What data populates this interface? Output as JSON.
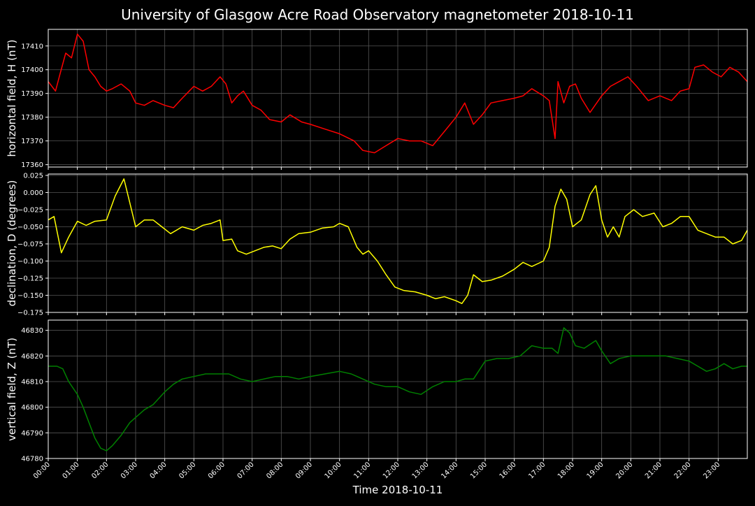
{
  "title": "University of Glasgow Acre Road Observatory magnetometer 2018-10-11",
  "xlabel": "Time 2018-10-11",
  "x_ticks": [
    "00:00",
    "01:00",
    "02:00",
    "03:00",
    "04:00",
    "05:00",
    "06:00",
    "07:00",
    "08:00",
    "09:00",
    "10:00",
    "11:00",
    "12:00",
    "13:00",
    "14:00",
    "15:00",
    "16:00",
    "17:00",
    "18:00",
    "19:00",
    "20:00",
    "21:00",
    "22:00",
    "23:00"
  ],
  "colors": {
    "background": "#000000",
    "grid": "#555555",
    "axes": "#ffffff"
  },
  "chart_data": [
    {
      "type": "line",
      "ylabel": "horizontal field, H (nT)",
      "color": "#ff0000",
      "xlim": [
        0,
        24
      ],
      "ylim": [
        17359,
        17417
      ],
      "y_ticks": [
        17360,
        17370,
        17380,
        17390,
        17400,
        17410
      ],
      "grid": true,
      "x": [
        0.0,
        0.25,
        0.4,
        0.6,
        0.8,
        1.0,
        1.2,
        1.4,
        1.6,
        1.8,
        2.0,
        2.2,
        2.5,
        2.8,
        3.0,
        3.3,
        3.6,
        4.0,
        4.3,
        4.6,
        5.0,
        5.3,
        5.6,
        5.9,
        6.1,
        6.3,
        6.5,
        6.7,
        7.0,
        7.3,
        7.6,
        8.0,
        8.3,
        8.7,
        9.0,
        9.5,
        10.0,
        10.5,
        10.8,
        11.2,
        11.6,
        12.0,
        12.4,
        12.8,
        13.2,
        13.6,
        14.0,
        14.3,
        14.6,
        14.9,
        15.2,
        15.6,
        16.0,
        16.3,
        16.6,
        17.0,
        17.2,
        17.4,
        17.5,
        17.7,
        17.9,
        18.1,
        18.3,
        18.6,
        19.0,
        19.3,
        19.6,
        19.9,
        20.2,
        20.6,
        21.0,
        21.4,
        21.7,
        22.0,
        22.2,
        22.5,
        22.8,
        23.1,
        23.4,
        23.7,
        24.0
      ],
      "y": [
        17395,
        17391,
        17398,
        17407,
        17405,
        17415,
        17412,
        17400,
        17397,
        17393,
        17391,
        17392,
        17394,
        17391,
        17386,
        17385,
        17387,
        17385,
        17384,
        17388,
        17393,
        17391,
        17393,
        17397,
        17394,
        17386,
        17389,
        17391,
        17385,
        17383,
        17379,
        17378,
        17381,
        17378,
        17377,
        17375,
        17373,
        17370,
        17366,
        17365,
        17368,
        17371,
        17370,
        17370,
        17368,
        17374,
        17380,
        17386,
        17377,
        17381,
        17386,
        17387,
        17388,
        17389,
        17392,
        17389,
        17387,
        17371,
        17395,
        17386,
        17393,
        17394,
        17388,
        17382,
        17389,
        17393,
        17395,
        17397,
        17393,
        17387,
        17389,
        17387,
        17391,
        17392,
        17401,
        17402,
        17399,
        17397,
        17401,
        17399,
        17395
      ]
    },
    {
      "type": "line",
      "ylabel": "declination, D (degrees)",
      "color": "#ffff00",
      "xlim": [
        0,
        24
      ],
      "ylim": [
        -0.175,
        0.027
      ],
      "y_ticks": [
        -0.175,
        -0.15,
        -0.125,
        -0.1,
        -0.075,
        -0.05,
        -0.025,
        0.0,
        0.025
      ],
      "y_tick_labels": [
        "−0.175",
        "−0.150",
        "−0.125",
        "−0.100",
        "−0.075",
        "−0.050",
        "−0.025",
        "0.000",
        "0.025"
      ],
      "grid": true,
      "x": [
        0.0,
        0.2,
        0.45,
        0.7,
        1.0,
        1.3,
        1.6,
        2.0,
        2.3,
        2.6,
        2.8,
        3.0,
        3.3,
        3.6,
        3.9,
        4.2,
        4.6,
        5.0,
        5.3,
        5.6,
        5.9,
        6.0,
        6.3,
        6.5,
        6.8,
        7.1,
        7.4,
        7.7,
        8.0,
        8.3,
        8.6,
        9.0,
        9.4,
        9.8,
        10.0,
        10.3,
        10.6,
        10.8,
        11.0,
        11.3,
        11.6,
        11.9,
        12.2,
        12.6,
        13.0,
        13.3,
        13.6,
        14.0,
        14.2,
        14.4,
        14.6,
        14.9,
        15.2,
        15.6,
        16.0,
        16.3,
        16.6,
        17.0,
        17.2,
        17.4,
        17.6,
        17.8,
        18.0,
        18.3,
        18.6,
        18.8,
        19.0,
        19.2,
        19.4,
        19.6,
        19.8,
        20.1,
        20.4,
        20.8,
        21.1,
        21.4,
        21.7,
        22.0,
        22.3,
        22.6,
        22.9,
        23.2,
        23.5,
        23.8,
        24.0
      ],
      "y": [
        -0.04,
        -0.035,
        -0.088,
        -0.065,
        -0.042,
        -0.048,
        -0.042,
        -0.04,
        -0.005,
        0.02,
        -0.015,
        -0.05,
        -0.04,
        -0.04,
        -0.05,
        -0.06,
        -0.05,
        -0.055,
        -0.048,
        -0.045,
        -0.04,
        -0.07,
        -0.068,
        -0.085,
        -0.09,
        -0.085,
        -0.08,
        -0.078,
        -0.082,
        -0.068,
        -0.06,
        -0.058,
        -0.052,
        -0.05,
        -0.045,
        -0.05,
        -0.08,
        -0.09,
        -0.085,
        -0.1,
        -0.12,
        -0.138,
        -0.143,
        -0.145,
        -0.15,
        -0.155,
        -0.152,
        -0.158,
        -0.162,
        -0.15,
        -0.12,
        -0.13,
        -0.128,
        -0.122,
        -0.112,
        -0.102,
        -0.108,
        -0.1,
        -0.08,
        -0.02,
        0.005,
        -0.01,
        -0.05,
        -0.04,
        -0.003,
        0.01,
        -0.04,
        -0.065,
        -0.05,
        -0.065,
        -0.035,
        -0.025,
        -0.035,
        -0.03,
        -0.05,
        -0.045,
        -0.035,
        -0.035,
        -0.055,
        -0.06,
        -0.065,
        -0.065,
        -0.075,
        -0.07,
        -0.055
      ]
    },
    {
      "type": "line",
      "ylabel": "vertical field, Z (nT)",
      "color": "#008000",
      "xlim": [
        0,
        24
      ],
      "ylim": [
        46780,
        46834
      ],
      "y_ticks": [
        46780,
        46790,
        46800,
        46810,
        46820,
        46830
      ],
      "grid": true,
      "x": [
        0.0,
        0.3,
        0.5,
        0.7,
        1.0,
        1.2,
        1.4,
        1.6,
        1.8,
        2.0,
        2.2,
        2.5,
        2.8,
        3.0,
        3.3,
        3.6,
        4.0,
        4.3,
        4.6,
        5.0,
        5.4,
        5.8,
        6.2,
        6.6,
        7.0,
        7.4,
        7.8,
        8.2,
        8.6,
        9.0,
        9.5,
        10.0,
        10.4,
        10.8,
        11.2,
        11.6,
        12.0,
        12.4,
        12.8,
        13.2,
        13.6,
        14.0,
        14.3,
        14.6,
        15.0,
        15.4,
        15.8,
        16.2,
        16.6,
        17.0,
        17.3,
        17.5,
        17.7,
        17.9,
        18.1,
        18.4,
        18.8,
        19.0,
        19.3,
        19.6,
        20.0,
        20.4,
        20.8,
        21.2,
        21.6,
        22.0,
        22.3,
        22.6,
        22.9,
        23.2,
        23.5,
        23.8,
        24.0
      ],
      "y": [
        46816,
        46816,
        46815,
        46810,
        46805,
        46800,
        46794,
        46788,
        46784,
        46783,
        46785,
        46789,
        46794,
        46796,
        46799,
        46801,
        46806,
        46809,
        46811,
        46812,
        46813,
        46813,
        46813,
        46811,
        46810,
        46811,
        46812,
        46812,
        46811,
        46812,
        46813,
        46814,
        46813,
        46811,
        46809,
        46808,
        46808,
        46806,
        46805,
        46808,
        46810,
        46810,
        46811,
        46811,
        46818,
        46819,
        46819,
        46820,
        46824,
        46823,
        46823,
        46821,
        46831,
        46829,
        46824,
        46823,
        46826,
        46822,
        46817,
        46819,
        46820,
        46820,
        46820,
        46820,
        46819,
        46818,
        46816,
        46814,
        46815,
        46817,
        46815,
        46816,
        46816
      ]
    }
  ]
}
